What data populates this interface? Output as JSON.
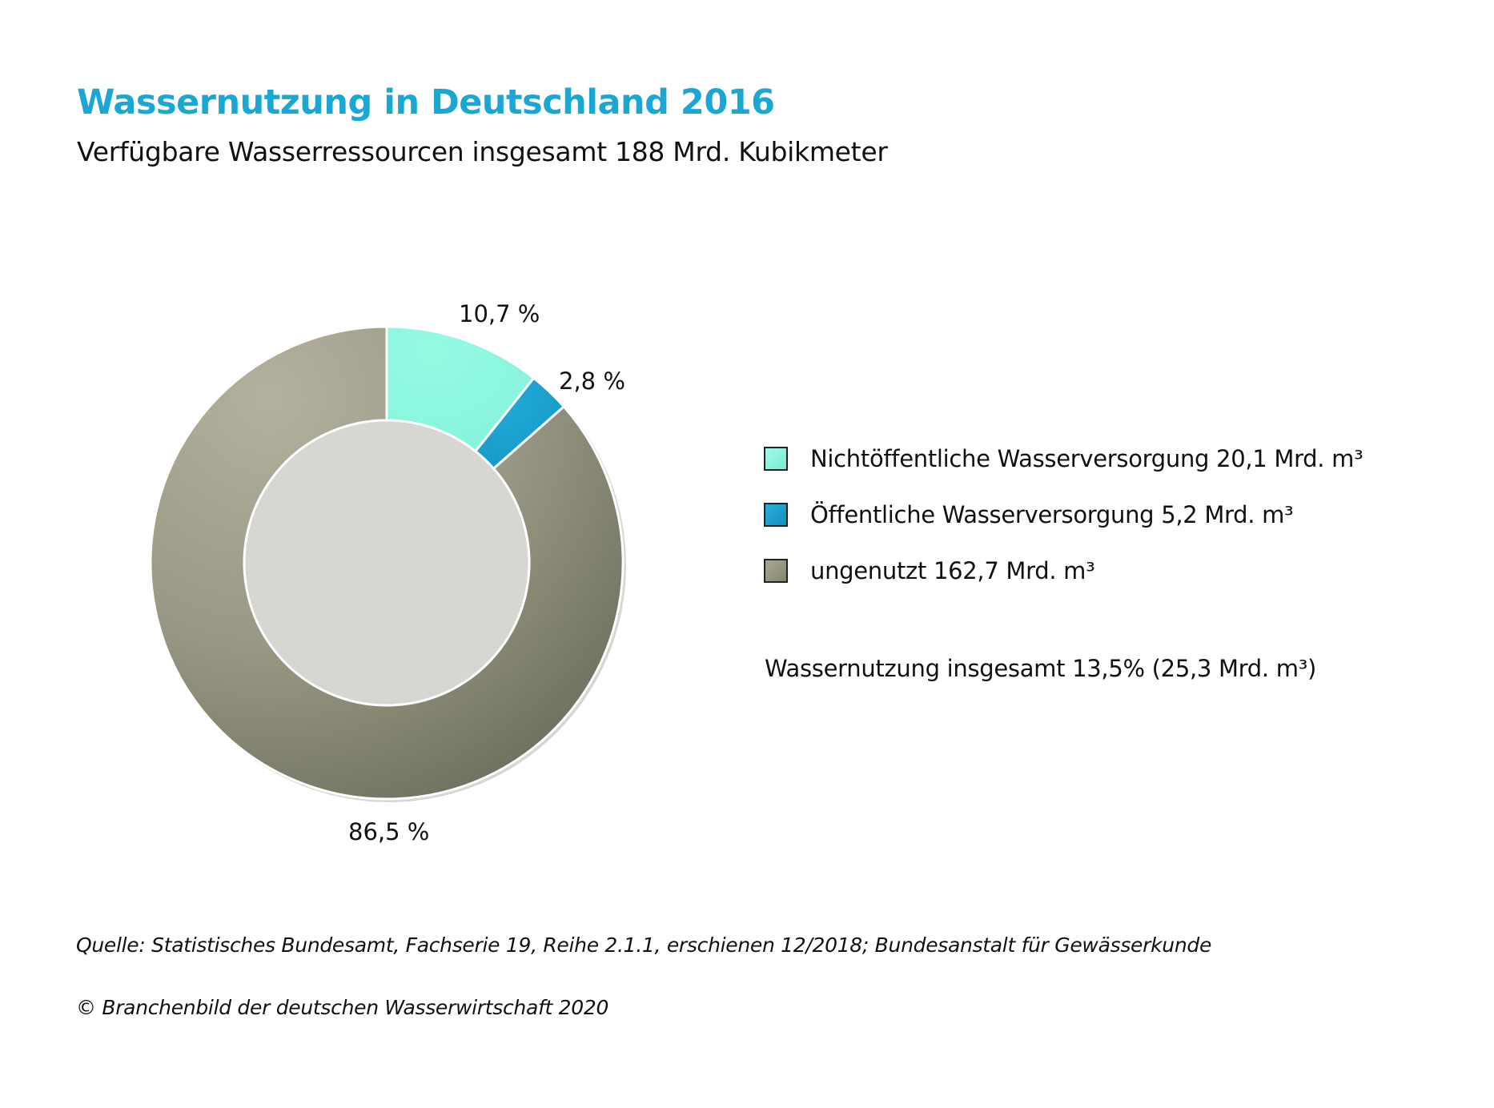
{
  "header": {
    "title": "Wassernutzung in Deutschland 2016",
    "subtitle": "Verfügbare Wasserressourcen insgesamt 188 Mrd. Kubikmeter"
  },
  "chart_data": {
    "type": "pie",
    "variant": "donut",
    "title": "Wassernutzung in Deutschland 2016",
    "subtitle": "Verfügbare Wasserressourcen insgesamt 188 Mrd. Kubikmeter",
    "unit": "%",
    "start": "top, clockwise",
    "legend_position": "right",
    "slices": [
      {
        "name": "Nichtöffentliche Wasserversorgung",
        "value": 10.7,
        "label": "10,7 %",
        "amount": 20.1,
        "legend": "Nichtöffentliche Wasserversorgung 20,1 Mrd. m³",
        "color": "#8ef5df"
      },
      {
        "name": "Öffentliche Wasserversorgung",
        "value": 2.8,
        "label": "2,8 %",
        "amount": 5.2,
        "legend": "Öffentliche Wasserversorgung 5,2 Mrd. m³",
        "color": "#1ba6d3"
      },
      {
        "name": "ungenutzt",
        "value": 86.5,
        "label": "86,5 %",
        "amount": 162.7,
        "legend": "ungenutzt 162,7 Mrd. m³",
        "color": "#9a9a84"
      }
    ],
    "annotation": "Wassernutzung insgesamt 13,5% (25,3 Mrd. m³)"
  },
  "footer": {
    "source": "Quelle: Statistisches Bundesamt, Fachserie 19, Reihe 2.1.1, erschienen 12/2018; Bundesanstalt für Gewässerkunde",
    "copyright": "© Branchenbild der deutschen Wasserwirtschaft 2020"
  }
}
